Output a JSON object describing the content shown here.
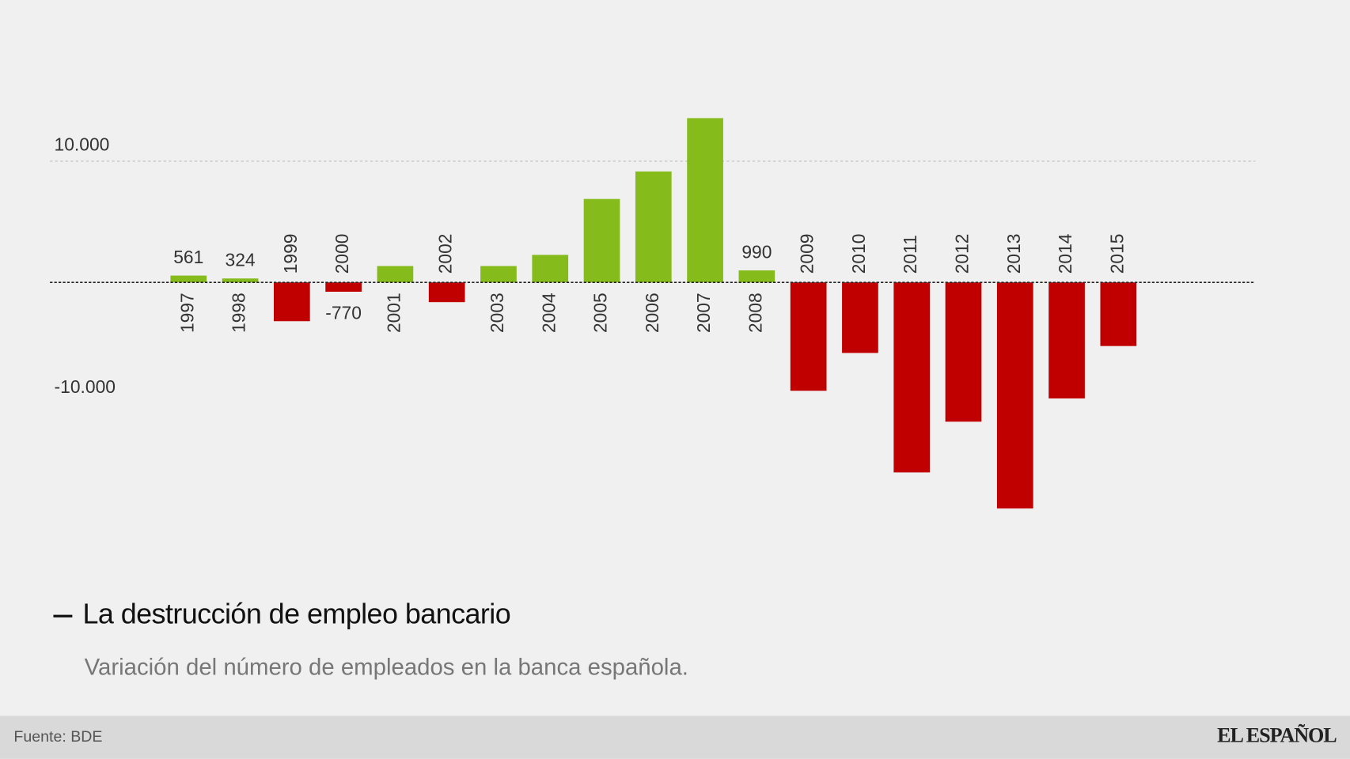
{
  "chart_data": {
    "type": "bar",
    "title": "La destrucción de empleo bancario",
    "subtitle": "Variación del número de empleados en la banca española.",
    "source": "Fuente: BDE",
    "brand": "EL ESPAÑOL",
    "categories": [
      "1997",
      "1998",
      "1999",
      "2000",
      "2001",
      "2002",
      "2003",
      "2004",
      "2005",
      "2006",
      "2007",
      "2008",
      "2009",
      "2010",
      "2011",
      "2012",
      "2013",
      "2014",
      "2015"
    ],
    "values": [
      561,
      324,
      -3200,
      -770,
      1350,
      -1630,
      1350,
      2270,
      6880,
      9150,
      13550,
      990,
      -8940,
      -5820,
      -15670,
      -11490,
      -18650,
      -9570,
      -5250
    ],
    "value_labels": [
      "561",
      "324",
      null,
      "-770",
      null,
      null,
      null,
      null,
      null,
      null,
      null,
      "990",
      null,
      null,
      null,
      null,
      null,
      null,
      null
    ],
    "colors": {
      "positive": "#86bb1c",
      "negative": "#c00000"
    },
    "ylim": [
      -20000,
      16000
    ],
    "yticks": [
      {
        "value": -10000,
        "label": "-10.000"
      },
      {
        "value": 10000,
        "label": "10.000"
      }
    ],
    "grid": true
  }
}
